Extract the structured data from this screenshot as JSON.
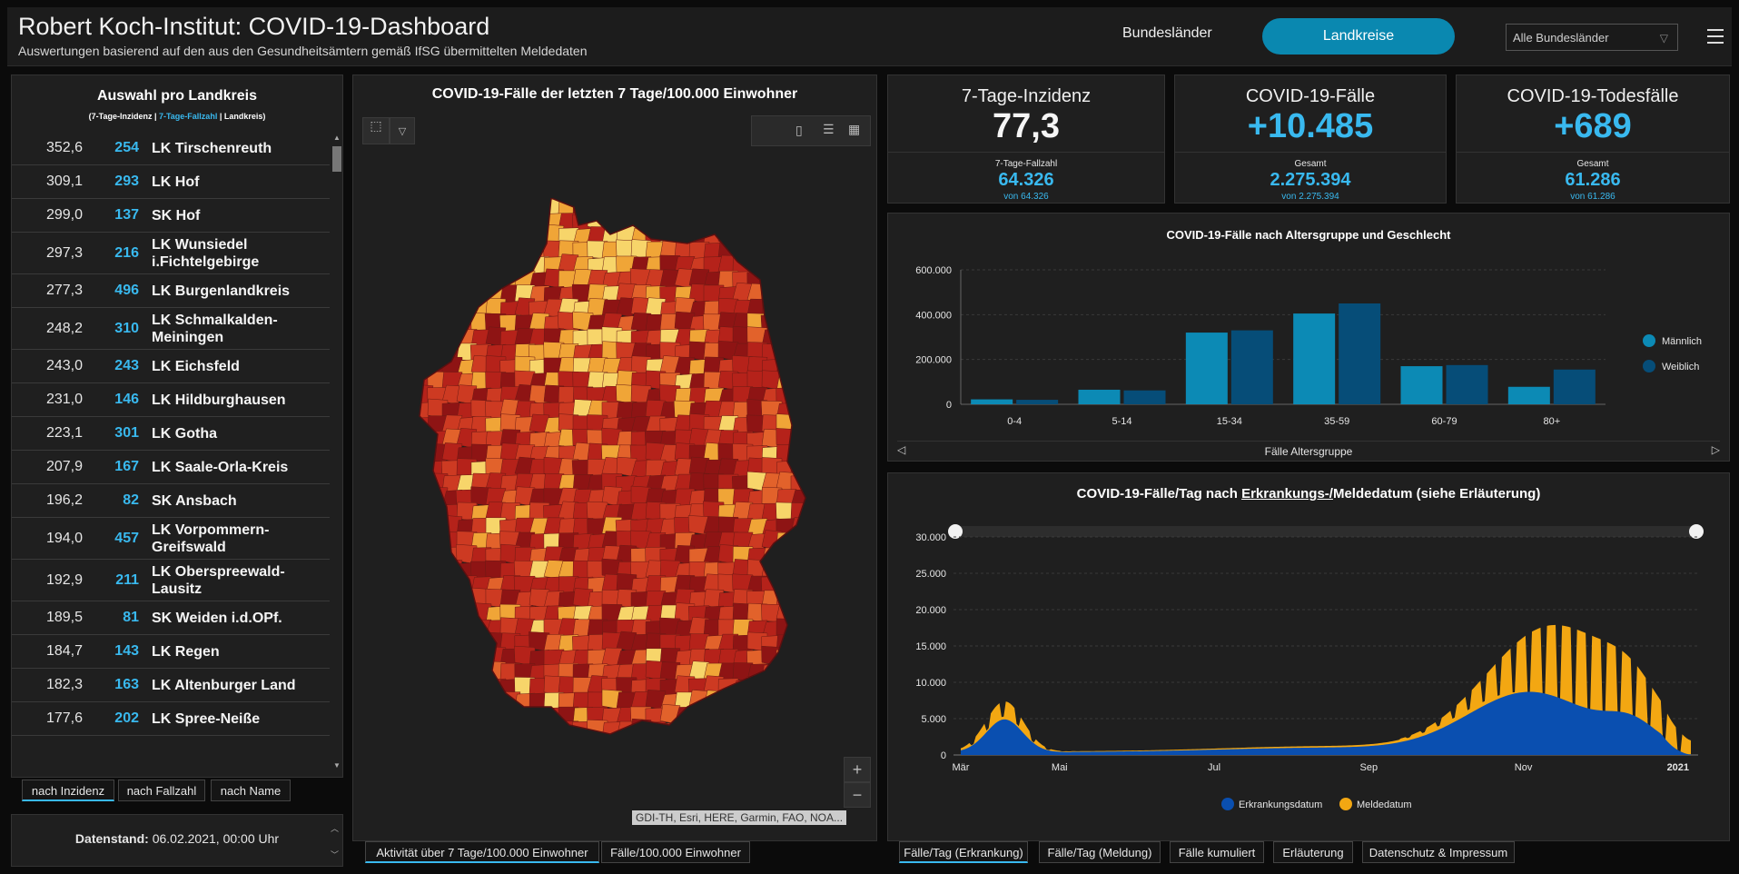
{
  "header": {
    "title": "Robert Koch-Institut: COVID-19-Dashboard",
    "subtitle": "Auswertungen basierend auf den aus den Gesundheitsämtern gemäß IfSG übermittelten Meldedaten",
    "tab_bundeslaender": "Bundesländer",
    "tab_landkreise": "Landkreise",
    "select_value": "Alle Bundesländer"
  },
  "list": {
    "title": "Auswahl pro Landkreis",
    "sub_a": "(7-Tage-Inzidenz | ",
    "sub_b": "7-Tage-Fallzahl",
    "sub_c": " | Landkreis)",
    "rows": [
      {
        "inz": "352,6",
        "fz": "254",
        "name": "LK Tirschenreuth"
      },
      {
        "inz": "309,1",
        "fz": "293",
        "name": "LK Hof"
      },
      {
        "inz": "299,0",
        "fz": "137",
        "name": "SK Hof"
      },
      {
        "inz": "297,3",
        "fz": "216",
        "name": "LK Wunsiedel i.Fichtelgebirge"
      },
      {
        "inz": "277,3",
        "fz": "496",
        "name": "LK Burgenlandkreis"
      },
      {
        "inz": "248,2",
        "fz": "310",
        "name": "LK Schmalkalden-Meiningen"
      },
      {
        "inz": "243,0",
        "fz": "243",
        "name": "LK Eichsfeld"
      },
      {
        "inz": "231,0",
        "fz": "146",
        "name": "LK Hildburghausen"
      },
      {
        "inz": "223,1",
        "fz": "301",
        "name": "LK Gotha"
      },
      {
        "inz": "207,9",
        "fz": "167",
        "name": "LK Saale-Orla-Kreis"
      },
      {
        "inz": "196,2",
        "fz": "82",
        "name": "SK Ansbach"
      },
      {
        "inz": "194,0",
        "fz": "457",
        "name": "LK Vorpommern-Greifswald"
      },
      {
        "inz": "192,9",
        "fz": "211",
        "name": "LK Oberspreewald-Lausitz"
      },
      {
        "inz": "189,5",
        "fz": "81",
        "name": "SK Weiden i.d.OPf."
      },
      {
        "inz": "184,7",
        "fz": "143",
        "name": "LK Regen"
      },
      {
        "inz": "182,3",
        "fz": "163",
        "name": "LK Altenburger Land"
      },
      {
        "inz": "177,6",
        "fz": "202",
        "name": "LK Spree-Neiße"
      }
    ],
    "sort_inzidenz": "nach Inzidenz",
    "sort_fallzahl": "nach Fallzahl",
    "sort_name": "nach Name",
    "datenstand_label": "Datenstand:",
    "datenstand_value": "06.02.2021, 00:00 Uhr"
  },
  "map": {
    "title": "COVID-19-Fälle der letzten 7 Tage/100.000 Einwohner",
    "attribution": "GDI-TH, Esri, HERE, Garmin, FAO, NOA...",
    "zoom_in": "+",
    "zoom_out": "−",
    "tab_activity": "Aktivität über 7 Tage/100.000 Einwohner",
    "tab_cases": "Fälle/100.000 Einwohner",
    "colors": [
      "#8e1414",
      "#b5221a",
      "#cd3a22",
      "#e2622b",
      "#f0a537",
      "#f7d56a"
    ]
  },
  "kpi": {
    "incidence": {
      "label": "7-Tage-Inzidenz",
      "value": "77,3",
      "sub_label": "7-Tage-Fallzahl",
      "sub_value": "64.326",
      "sub_tiny": "von 64.326"
    },
    "cases": {
      "label": "COVID-19-Fälle",
      "value": "+10.485",
      "sub_label": "Gesamt",
      "sub_value": "2.275.394",
      "sub_tiny": "von 2.275.394"
    },
    "deaths": {
      "label": "COVID-19-Todesfälle",
      "value": "+689",
      "sub_label": "Gesamt",
      "sub_value": "61.286",
      "sub_tiny": "von 61.286"
    }
  },
  "chart_data": [
    {
      "type": "bar",
      "title": "COVID-19-Fälle nach Altersgruppe und Geschlecht",
      "xlabel": "Fälle Altersgruppe",
      "ylabel": "",
      "categories": [
        "0-4",
        "5-14",
        "15-34",
        "35-59",
        "60-79",
        "80+"
      ],
      "series": [
        {
          "name": "Männlich",
          "color": "#0c8ab5",
          "values": [
            22000,
            65000,
            320000,
            405000,
            170000,
            78000
          ]
        },
        {
          "name": "Weiblich",
          "color": "#064d78",
          "values": [
            20000,
            62000,
            330000,
            450000,
            175000,
            155000
          ]
        }
      ],
      "ylim": [
        0,
        600000
      ],
      "yticks": [
        "0",
        "200.000",
        "400.000",
        "600.000"
      ],
      "legend": "right",
      "grid": true
    },
    {
      "type": "area",
      "title_a": "COVID-19-Fälle/Tag nach ",
      "title_b": "Erkrankungs-/",
      "title_c": "Meldedatum (siehe Erläuterung)",
      "x_labels": [
        "Mär",
        "Mai",
        "Jul",
        "Sep",
        "Nov",
        "2021"
      ],
      "yticks": [
        "0",
        "5.000",
        "10.000",
        "15.000",
        "20.000",
        "25.000",
        "30.000"
      ],
      "ylim": [
        0,
        30000
      ],
      "series": [
        {
          "name": "Erkrankungsdatum",
          "color": "#0a4fb0"
        },
        {
          "name": "Meldedatum",
          "color": "#f3a712"
        }
      ],
      "legend": "bottom",
      "grid": true
    }
  ],
  "bottom_tabs": [
    "Fälle/Tag (Erkrankung)",
    "Fälle/Tag (Meldung)",
    "Fälle kumuliert",
    "Erläuterung",
    "Datenschutz & Impressum"
  ]
}
